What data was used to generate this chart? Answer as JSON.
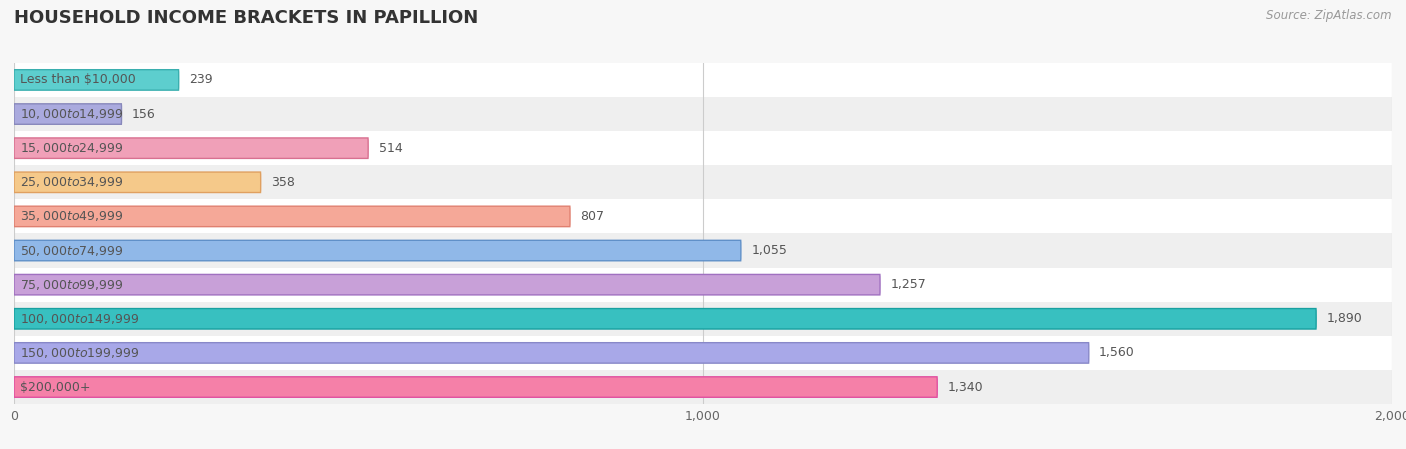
{
  "title": "HOUSEHOLD INCOME BRACKETS IN PAPILLION",
  "source": "Source: ZipAtlas.com",
  "categories": [
    "Less than $10,000",
    "$10,000 to $14,999",
    "$15,000 to $24,999",
    "$25,000 to $34,999",
    "$35,000 to $49,999",
    "$50,000 to $74,999",
    "$75,000 to $99,999",
    "$100,000 to $149,999",
    "$150,000 to $199,999",
    "$200,000+"
  ],
  "values": [
    239,
    156,
    514,
    358,
    807,
    1055,
    1257,
    1890,
    1560,
    1340
  ],
  "bar_colors": [
    "#5DCECE",
    "#AAAADE",
    "#F0A0B8",
    "#F5C98A",
    "#F5A898",
    "#90B8E8",
    "#C8A0D8",
    "#38C0C0",
    "#A8A8E8",
    "#F580A8"
  ],
  "bar_edge_colors": [
    "#3AAFAF",
    "#8888BB",
    "#D87090",
    "#E0A060",
    "#E08070",
    "#6090C8",
    "#A070C0",
    "#18A0A0",
    "#8888C8",
    "#E050A0"
  ],
  "xlim": [
    0,
    2000
  ],
  "xticks": [
    0,
    1000,
    2000
  ],
  "bar_height": 0.6,
  "background_color": "#f7f7f7",
  "title_fontsize": 13,
  "label_fontsize": 9,
  "value_fontsize": 9,
  "source_fontsize": 8.5
}
